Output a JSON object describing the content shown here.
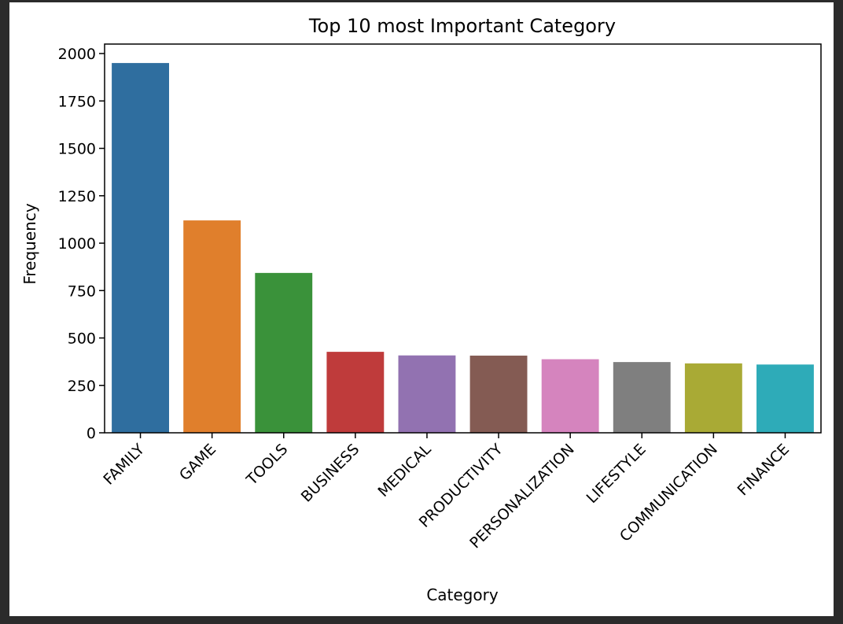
{
  "chart_data": {
    "type": "bar",
    "title": "Top 10 most Important Category",
    "xlabel": "Category",
    "ylabel": "Frequency",
    "categories": [
      "FAMILY",
      "GAME",
      "TOOLS",
      "BUSINESS",
      "MEDICAL",
      "PRODUCTIVITY",
      "PERSONALIZATION",
      "LIFESTYLE",
      "COMMUNICATION",
      "FINANCE"
    ],
    "values": [
      1950,
      1120,
      843,
      427,
      408,
      407,
      388,
      373,
      366,
      360
    ],
    "colors": [
      "#2f6e9f",
      "#e07f2c",
      "#3a923a",
      "#bf3b3b",
      "#9272b1",
      "#845b53",
      "#d584be",
      "#7f7f7f",
      "#a9aa35",
      "#2eabb8"
    ],
    "ylim": [
      0,
      2050
    ],
    "yticks": [
      0,
      250,
      500,
      750,
      1000,
      1250,
      1500,
      1750,
      2000
    ],
    "grid": false,
    "legend": "none"
  }
}
